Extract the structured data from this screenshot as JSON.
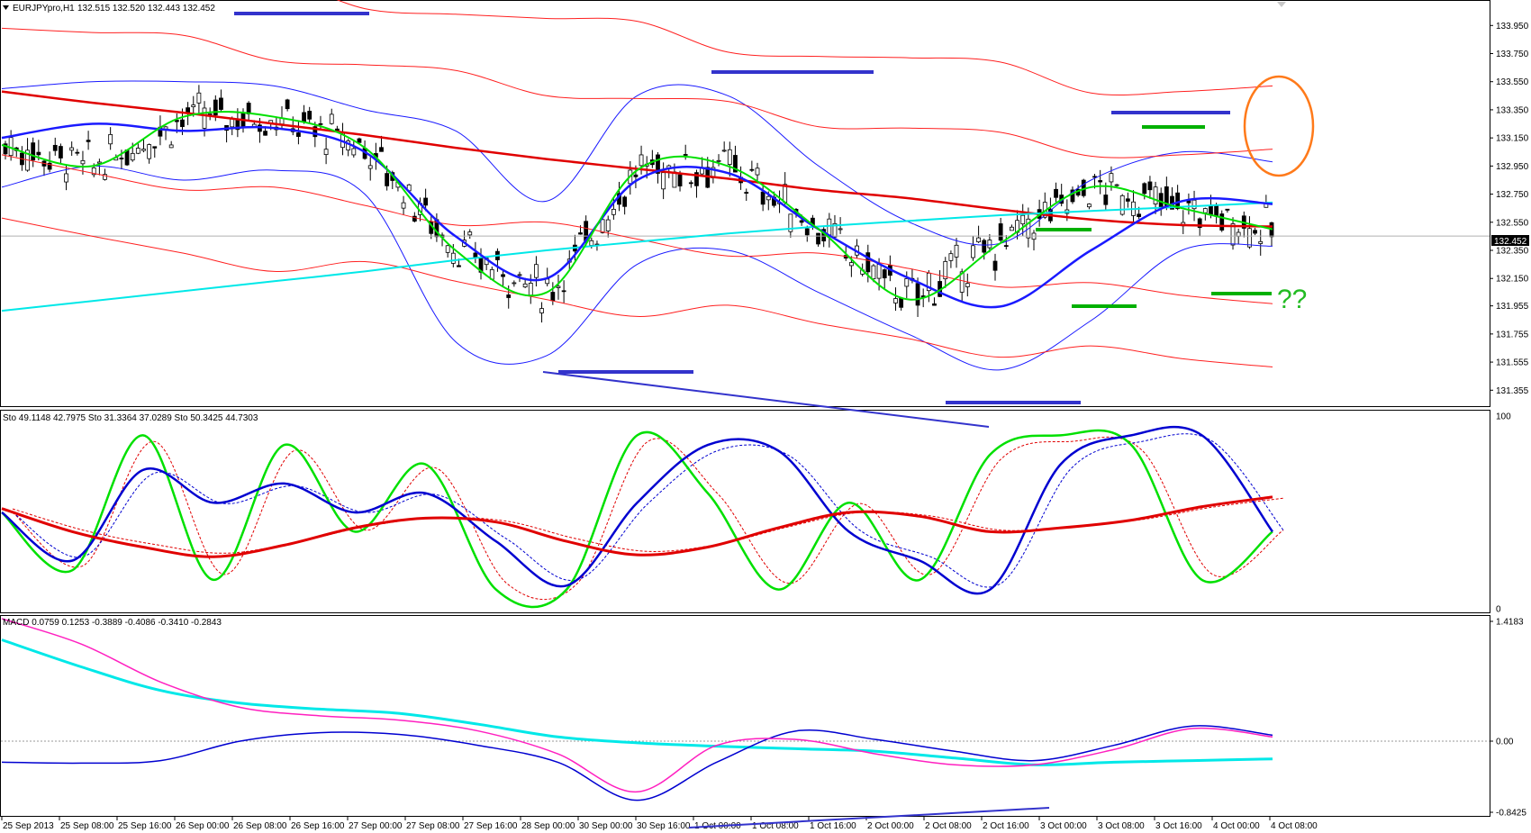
{
  "window": {
    "title": "EURJPYpro,H1",
    "ohlc": "132.515 132.520 132.443 132.452"
  },
  "colors": {
    "ma_red": "#e00000",
    "bb_red": "#ff2020",
    "bb_blue": "#1a1aff",
    "ma_blue": "#0000d0",
    "ma_green": "#00e000",
    "ma_cyan": "#00e8e8",
    "macd_magenta": "#ff20c0",
    "marker_blue": "#3333cc",
    "marker_green": "#00b000",
    "annotation_orange": "#ff7a1a",
    "annotation_green": "#22bb22"
  },
  "chart_data": [
    {
      "type": "line",
      "panel": "price",
      "symbol": "EURJPYpro,H1",
      "current_price_label": "132.452",
      "ylim": [
        131.28,
        134.08
      ],
      "yticks": [
        "133.950",
        "133.750",
        "133.550",
        "133.350",
        "133.150",
        "132.950",
        "132.750",
        "132.550",
        "132.350",
        "132.150",
        "131.955",
        "131.755",
        "131.555",
        "131.355"
      ],
      "annotation_text": "??",
      "series": [
        {
          "color": "#e00000",
          "values": [
            133.48,
            133.4,
            133.33,
            133.25,
            133.17,
            133.08,
            133.0,
            132.93,
            132.86,
            132.78,
            132.72,
            132.64,
            132.57,
            132.53,
            132.52
          ]
        },
        {
          "color": "#00e8e8",
          "values": [
            131.92,
            131.99,
            132.06,
            132.13,
            132.2,
            132.28,
            132.35,
            132.41,
            132.47,
            132.52,
            132.56,
            132.6,
            132.63,
            132.66,
            132.69
          ]
        },
        {
          "color": "#1a1aff",
          "values": [
            133.15,
            133.25,
            133.2,
            133.22,
            133.05,
            132.45,
            132.15,
            132.85,
            132.9,
            132.5,
            132.15,
            131.95,
            132.35,
            132.7,
            132.68
          ]
        },
        {
          "color": "#00e000",
          "values": [
            133.1,
            132.95,
            133.3,
            133.3,
            133.08,
            132.35,
            132.05,
            132.92,
            132.95,
            132.5,
            132.0,
            132.4,
            132.8,
            132.65,
            132.5
          ]
        }
      ]
    },
    {
      "type": "line",
      "panel": "stochastic",
      "title": "Sto 49.1148 42.7975  Sto 31.3364 37.0289  Sto 50.3425 44.7303",
      "ylim": [
        0,
        100
      ],
      "yticks": [
        "100",
        "0"
      ],
      "series": [
        {
          "color": "#00e000",
          "values": [
            50,
            20,
            90,
            15,
            85,
            40,
            75,
            10,
            10,
            90,
            60,
            10,
            55,
            15,
            80,
            90,
            85,
            15,
            40
          ]
        },
        {
          "color": "#0000d0",
          "values": [
            50,
            25,
            72,
            55,
            65,
            50,
            60,
            35,
            12,
            55,
            85,
            82,
            40,
            25,
            10,
            75,
            90,
            90,
            40
          ]
        },
        {
          "color": "#e00000",
          "values": [
            52,
            40,
            32,
            27,
            33,
            42,
            47,
            45,
            35,
            28,
            32,
            42,
            50,
            48,
            40,
            42,
            46,
            53,
            58
          ]
        }
      ]
    },
    {
      "type": "line",
      "panel": "macd",
      "title": "MACD 0.0759 0.1253 -0.3889 -0.4086 -0.3410 -0.2843",
      "ylim": [
        -0.8425,
        1.4183
      ],
      "yticks": [
        "1.4183",
        "0.00",
        "-0.8425"
      ],
      "series": [
        {
          "color": "#00e8e8",
          "values": [
            1.2,
            0.88,
            0.6,
            0.45,
            0.38,
            0.33,
            0.2,
            0.05,
            -0.02,
            -0.06,
            -0.09,
            -0.12,
            -0.2,
            -0.28,
            -0.25,
            -0.23,
            -0.21
          ]
        },
        {
          "color": "#0000d0",
          "values": [
            -0.25,
            -0.26,
            -0.23,
            0.0,
            0.1,
            0.08,
            -0.05,
            -0.25,
            -0.7,
            -0.25,
            0.12,
            0.02,
            -0.12,
            -0.23,
            -0.05,
            0.18,
            0.07
          ]
        },
        {
          "color": "#ff20c0",
          "values": [
            1.45,
            1.15,
            0.7,
            0.4,
            0.3,
            0.25,
            0.12,
            -0.15,
            -0.6,
            -0.05,
            0.02,
            -0.15,
            -0.28,
            -0.28,
            -0.1,
            0.15,
            0.05
          ]
        }
      ]
    }
  ],
  "x_axis": {
    "labels": [
      "25 Sep 2013",
      "25 Sep 08:00",
      "25 Sep 16:00",
      "26 Sep 00:00",
      "26 Sep 08:00",
      "26 Sep 16:00",
      "27 Sep 00:00",
      "27 Sep 08:00",
      "27 Sep 16:00",
      "28 Sep 00:00",
      "30 Sep 00:00",
      "30 Sep 16:00",
      "1 Oct 00:00",
      "1 Oct 08:00",
      "1 Oct 16:00",
      "2 Oct 00:00",
      "2 Oct 08:00",
      "2 Oct 16:00",
      "3 Oct 00:00",
      "3 Oct 08:00",
      "3 Oct 16:00",
      "4 Oct 00:00",
      "4 Oct 08:00"
    ]
  }
}
